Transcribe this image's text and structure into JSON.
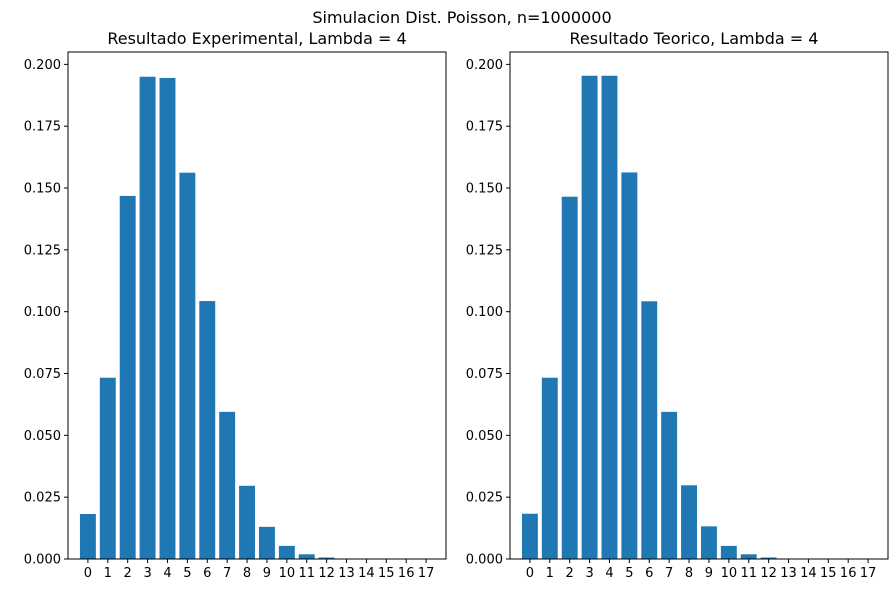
{
  "figure": {
    "title": "Simulacion Dist. Poisson, n=1000000"
  },
  "bar_color": "#1f77b4",
  "chart_data": [
    {
      "type": "bar",
      "title": "Resultado Experimental, Lambda = 4",
      "xlabel": "",
      "ylabel": "",
      "categories": [
        "0",
        "1",
        "2",
        "3",
        "4",
        "5",
        "6",
        "7",
        "8",
        "9",
        "10",
        "11",
        "12",
        "13",
        "14",
        "15",
        "16",
        "17"
      ],
      "values": [
        0.0182,
        0.0733,
        0.1468,
        0.195,
        0.1945,
        0.1562,
        0.1043,
        0.0595,
        0.0296,
        0.013,
        0.0053,
        0.0019,
        0.0006,
        0.0002,
        0.0,
        0.0,
        0.0,
        0.0
      ],
      "ylim": [
        0,
        0.205
      ],
      "yticks": [
        "0.000",
        "0.025",
        "0.050",
        "0.075",
        "0.100",
        "0.125",
        "0.150",
        "0.175",
        "0.200"
      ],
      "grid": false
    },
    {
      "type": "bar",
      "title": "Resultado Teorico, Lambda = 4",
      "xlabel": "",
      "ylabel": "",
      "categories": [
        "0",
        "1",
        "2",
        "3",
        "4",
        "5",
        "6",
        "7",
        "8",
        "9",
        "10",
        "11",
        "12",
        "13",
        "14",
        "15",
        "16",
        "17"
      ],
      "values": [
        0.0183,
        0.0733,
        0.1465,
        0.1954,
        0.1954,
        0.1563,
        0.1042,
        0.0595,
        0.0298,
        0.0132,
        0.0053,
        0.0019,
        0.0006,
        0.0002,
        0.0001,
        0.0,
        0.0,
        0.0
      ],
      "ylim": [
        0,
        0.205
      ],
      "yticks": [
        "0.000",
        "0.025",
        "0.050",
        "0.075",
        "0.100",
        "0.125",
        "0.150",
        "0.175",
        "0.200"
      ],
      "grid": false
    }
  ]
}
